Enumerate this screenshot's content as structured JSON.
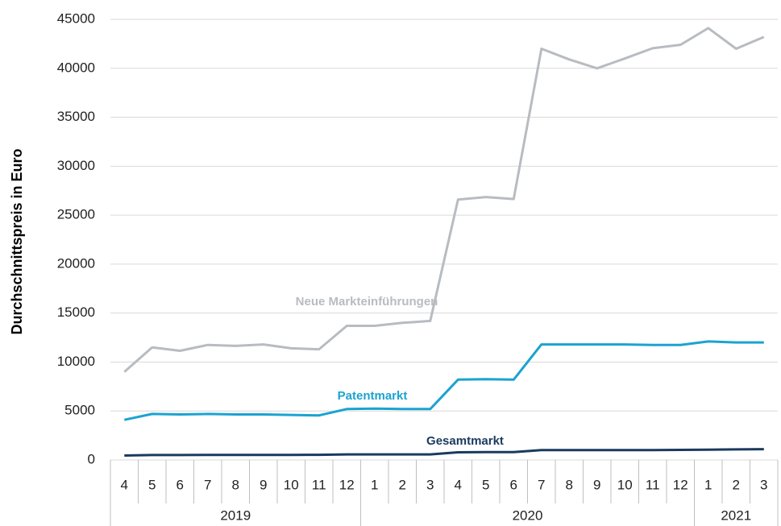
{
  "chart_data": {
    "type": "line",
    "y_label": "Durchschnittspreis in Euro",
    "categories": [
      "4",
      "5",
      "6",
      "7",
      "8",
      "9",
      "10",
      "11",
      "12",
      "1",
      "2",
      "3",
      "4",
      "5",
      "6",
      "7",
      "8",
      "9",
      "10",
      "11",
      "12",
      "1",
      "2",
      "3"
    ],
    "groups": [
      {
        "label": "2019",
        "size": 9
      },
      {
        "label": "2020",
        "size": 12
      },
      {
        "label": "2021",
        "size": 3
      }
    ],
    "series": [
      {
        "name": "Neue Markteinführungen",
        "color": "#b8bcc0",
        "values": [
          9000,
          11500,
          11150,
          11750,
          11650,
          11800,
          11400,
          11300,
          13700,
          13700,
          14000,
          14200,
          26600,
          26850,
          26650,
          42000,
          40900,
          40000,
          41000,
          42050,
          42400,
          44100,
          42000,
          43200
        ]
      },
      {
        "name": "Patentmarkt",
        "color": "#1ba3d1",
        "values": [
          4100,
          4700,
          4650,
          4700,
          4650,
          4650,
          4600,
          4550,
          5200,
          5250,
          5200,
          5200,
          8200,
          8250,
          8200,
          11800,
          11800,
          11800,
          11800,
          11750,
          11750,
          12100,
          12000,
          12000
        ]
      },
      {
        "name": "Gesamtmarkt",
        "color": "#1a3a5f",
        "values": [
          450,
          500,
          500,
          520,
          520,
          520,
          520,
          530,
          570,
          570,
          570,
          570,
          780,
          800,
          800,
          1000,
          1000,
          1010,
          1010,
          1010,
          1030,
          1050,
          1080,
          1100
        ]
      }
    ],
    "ylim": [
      0,
      45000
    ],
    "yticks": [
      0,
      5000,
      10000,
      15000,
      20000,
      25000,
      30000,
      35000,
      40000,
      45000
    ],
    "grid": true
  }
}
